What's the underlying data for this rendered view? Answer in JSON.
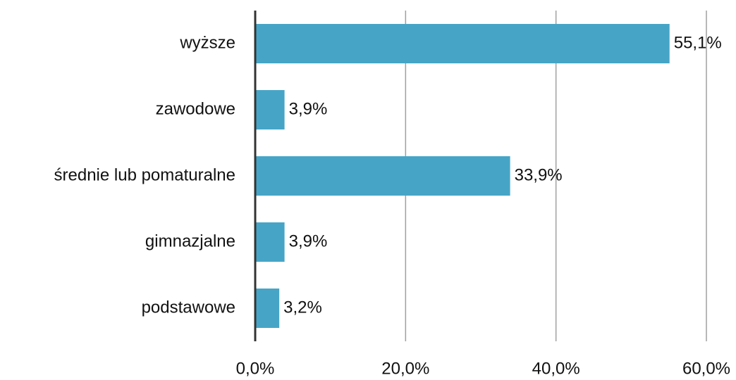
{
  "chart_data": {
    "type": "barh",
    "categories": [
      "wyższe",
      "zawodowe",
      "średnie lub pomaturalne",
      "gimnazjalne",
      "podstawowe"
    ],
    "values": [
      55.1,
      3.9,
      33.9,
      3.9,
      3.2
    ],
    "value_labels": [
      "55,1%",
      "3,9%",
      "33,9%",
      "3,9%",
      "3,2%"
    ],
    "color": "#46a5c7",
    "xlim": [
      0,
      60
    ],
    "xticks": [
      {
        "value": 0,
        "label": "0,0%"
      },
      {
        "value": 20,
        "label": "20,0%"
      },
      {
        "value": 40,
        "label": "40,0%"
      },
      {
        "value": 60,
        "label": "60,0%"
      }
    ],
    "grid": true
  }
}
